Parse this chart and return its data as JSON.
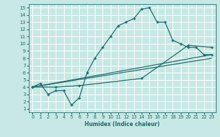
{
  "xlabel": "Humidex (Indice chaleur)",
  "xlim": [
    -0.5,
    23.5
  ],
  "ylim": [
    0.5,
    15.5
  ],
  "xticks": [
    0,
    1,
    2,
    3,
    4,
    5,
    6,
    7,
    8,
    9,
    10,
    11,
    12,
    13,
    14,
    15,
    16,
    17,
    18,
    19,
    20,
    21,
    22,
    23
  ],
  "yticks": [
    1,
    2,
    3,
    4,
    5,
    6,
    7,
    8,
    9,
    10,
    11,
    12,
    13,
    14,
    15
  ],
  "bg_color": "#c7e8e4",
  "line_color": "#1a6b6b",
  "grid_color": "#ffffff",
  "lines": [
    {
      "x": [
        0,
        1,
        2,
        3,
        4,
        5,
        6,
        7,
        8,
        9,
        10,
        11,
        12,
        13,
        14,
        15,
        16,
        17,
        18,
        19,
        20,
        21,
        22,
        23
      ],
      "y": [
        4.0,
        4.5,
        3.0,
        3.5,
        3.5,
        1.5,
        2.5,
        6.0,
        8.0,
        9.5,
        11.0,
        12.5,
        13.0,
        13.5,
        14.8,
        15.0,
        13.0,
        13.0,
        10.5,
        10.0,
        9.5,
        9.5,
        8.5,
        8.5
      ],
      "marker": "+"
    },
    {
      "x": [
        0,
        23
      ],
      "y": [
        4.0,
        8.5
      ],
      "marker": null
    },
    {
      "x": [
        0,
        23
      ],
      "y": [
        4.0,
        8.0
      ],
      "marker": null
    },
    {
      "x": [
        0,
        3,
        6,
        14,
        20,
        23
      ],
      "y": [
        4.0,
        4.0,
        4.2,
        5.2,
        9.8,
        9.5
      ],
      "marker": "+"
    }
  ]
}
